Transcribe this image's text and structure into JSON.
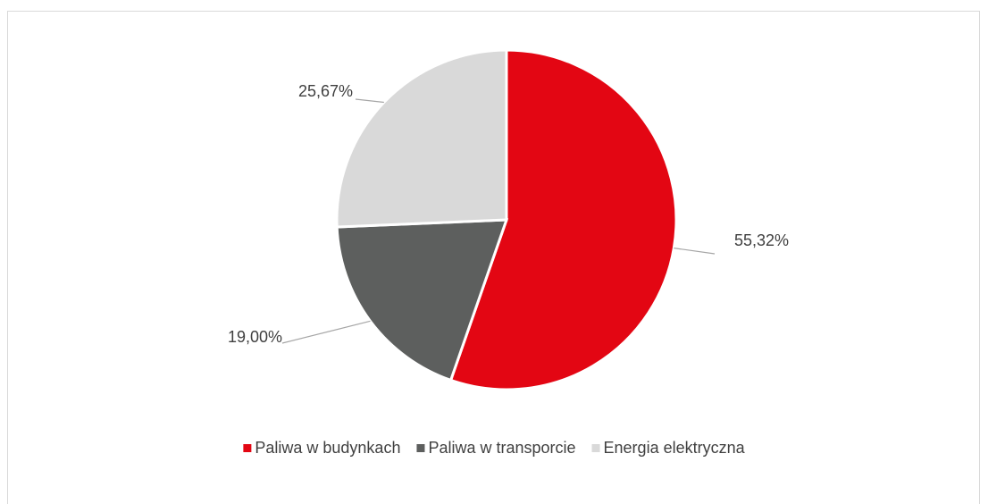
{
  "chart_data": {
    "type": "pie",
    "categories": [
      "Paliwa w budynkach",
      "Paliwa w transporcie",
      "Energia elektryczna"
    ],
    "values": [
      55.32,
      19.0,
      25.67
    ],
    "value_labels": [
      "55,32%",
      "19,00%",
      "25,67%"
    ],
    "colors": [
      "#e30613",
      "#5d5f5e",
      "#d9d9d9"
    ],
    "legend": "bottom"
  }
}
